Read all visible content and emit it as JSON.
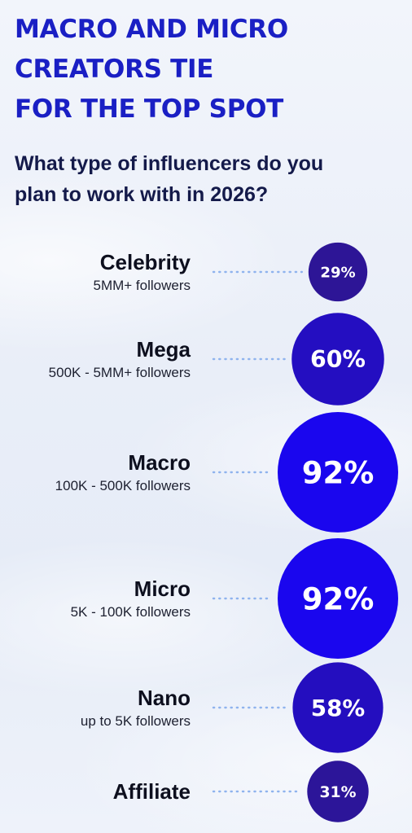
{
  "header": {
    "title_lines": [
      "MACRO AND MICRO",
      "CREATORS TIE",
      "FOR THE TOP SPOT"
    ],
    "question_lines": [
      "What type of influencers do you",
      "plan to work with in 2026?"
    ]
  },
  "chart_data": {
    "type": "bubble",
    "title": "MACRO AND MICRO CREATORS TIE FOR THE TOP SPOT",
    "subtitle": "What type of influencers do you plan to work with in 2026?",
    "categories": [
      {
        "label": "Celebrity",
        "sublabel": "5MM+ followers",
        "value": 29,
        "display": "29%"
      },
      {
        "label": "Mega",
        "sublabel": "500K - 5MM+ followers",
        "value": 60,
        "display": "60%"
      },
      {
        "label": "Macro",
        "sublabel": "100K - 500K followers",
        "value": 92,
        "display": "92%"
      },
      {
        "label": "Micro",
        "sublabel": "5K - 100K followers",
        "value": 92,
        "display": "92%"
      },
      {
        "label": "Nano",
        "sublabel": "up to 5K followers",
        "value": 58,
        "display": "58%"
      },
      {
        "label": "Affiliate",
        "sublabel": "",
        "value": 31,
        "display": "31%"
      }
    ],
    "unit": "%",
    "colors": {
      "low": "#2d1596",
      "high": "#1a06ee"
    }
  }
}
